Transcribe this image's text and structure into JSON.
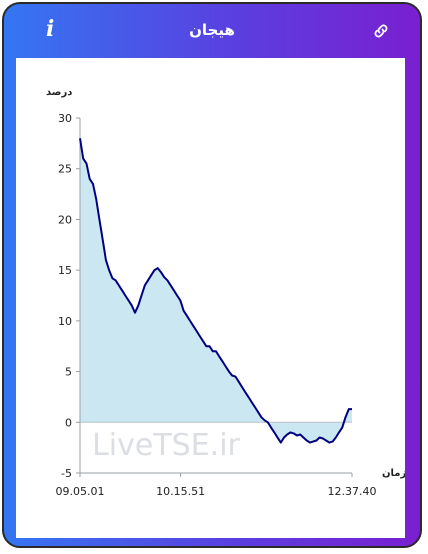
{
  "header": {
    "title": "هیجان",
    "info_label": "i"
  },
  "watermark": "LiveTSE.ir",
  "chart_data": {
    "type": "area",
    "title": "",
    "xlabel": "زمان",
    "ylabel": "درصد",
    "ylim": [
      -5,
      30
    ],
    "yticks": [
      30,
      25,
      20,
      15,
      10,
      5,
      0,
      -5
    ],
    "x_tick_labels": [
      "09.05.01",
      "10.15.51",
      "12.37.40"
    ],
    "x_tick_positions": [
      0,
      0.37,
      1
    ],
    "grid": false,
    "legend": "none",
    "colors": {
      "line": "#000080",
      "fill": "#cbe8f2"
    },
    "series": [
      {
        "values": [
          28,
          26,
          25.5,
          24,
          23.5,
          22,
          20,
          18,
          16,
          15,
          14.2,
          14,
          13.5,
          13,
          12.5,
          12,
          11.5,
          10.8,
          11.5,
          12.5,
          13.5,
          14,
          14.5,
          15,
          15.2,
          14.8,
          14.3,
          14,
          13.5,
          13,
          12.5,
          12,
          11,
          10.5,
          10,
          9.5,
          9,
          8.5,
          8,
          7.5,
          7.5,
          7,
          7,
          6.5,
          6,
          5.5,
          5,
          4.6,
          4.5,
          4,
          3.5,
          3,
          2.5,
          2,
          1.5,
          1,
          0.5,
          0.2,
          0,
          -0.5,
          -1,
          -1.5,
          -2,
          -1.5,
          -1.2,
          -1,
          -1.1,
          -1.3,
          -1.2,
          -1.5,
          -1.8,
          -2,
          -1.9,
          -1.8,
          -1.5,
          -1.6,
          -1.8,
          -2,
          -1.9,
          -1.5,
          -1,
          -0.5,
          0.5,
          1.3,
          1.3
        ]
      }
    ]
  }
}
